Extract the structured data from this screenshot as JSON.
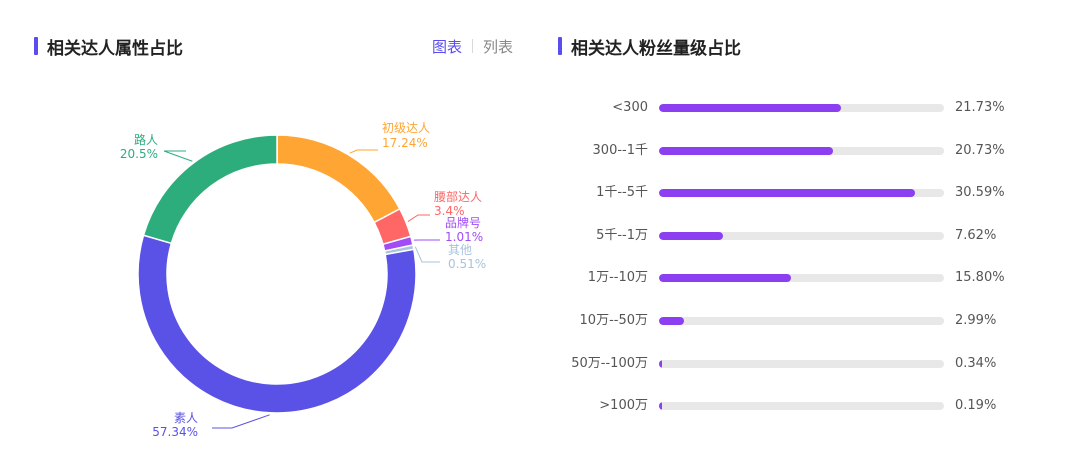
{
  "left_panel": {
    "title": "相关达人属性占比",
    "accent": "#5b4cf0",
    "view_toggle": {
      "chart_label": "图表",
      "list_label": "列表",
      "active": "chart",
      "active_color": "#5b4cf0",
      "inactive_color": "#888888"
    }
  },
  "right_panel": {
    "title": "相关达人粉丝量级占比",
    "accent": "#5b4cf0"
  },
  "chart_data": [
    {
      "type": "pie",
      "variant": "donut",
      "title": "相关达人属性占比",
      "slices": [
        {
          "name": "初级达人",
          "value": 17.24,
          "label": "17.24%",
          "color": "#ffa533"
        },
        {
          "name": "腰部达人",
          "value": 3.4,
          "label": "3.4%",
          "color": "#ff6666"
        },
        {
          "name": "品牌号",
          "value": 1.01,
          "label": "1.01%",
          "color": "#a14cf5"
        },
        {
          "name": "其他",
          "value": 0.51,
          "label": "0.51%",
          "color": "#a8c3dc"
        },
        {
          "name": "素人",
          "value": 57.34,
          "label": "57.34%",
          "color": "#5a52e6"
        },
        {
          "name": "路人",
          "value": 20.5,
          "label": "20.5%",
          "color": "#2ead7c"
        }
      ]
    },
    {
      "type": "bar",
      "orientation": "horizontal",
      "title": "相关达人粉丝量级占比",
      "bar_color": "#8c3ff0",
      "track_color": "#e8e8e8",
      "categories": [
        "<300",
        "300--1千",
        "1千--5千",
        "5千--1万",
        "1万--10万",
        "10万--50万",
        "50万--100万",
        ">100万"
      ],
      "values": [
        21.73,
        20.73,
        30.59,
        7.62,
        15.8,
        2.99,
        0.34,
        0.19
      ],
      "value_labels": [
        "21.73%",
        "20.73%",
        "30.59%",
        "7.62%",
        "15.80%",
        "2.99%",
        "0.34%",
        "0.19%"
      ],
      "xlim": [
        0,
        34
      ]
    }
  ]
}
